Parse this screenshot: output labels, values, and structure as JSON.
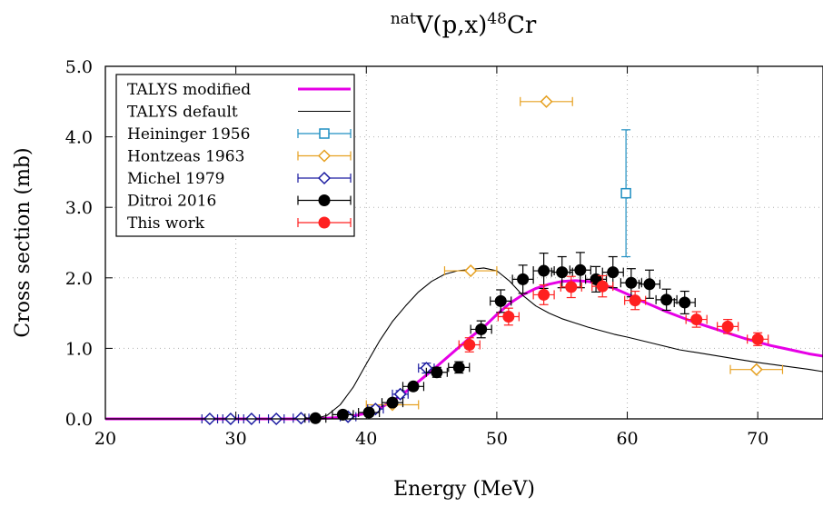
{
  "chart_data": {
    "type": "scatter",
    "title": {
      "base": "V(p,x)",
      "pre_sup": "nat",
      "post_sup": "48",
      "tail": "Cr"
    },
    "xlabel": "Energy (MeV)",
    "ylabel": "Cross section (mb)",
    "xlim": [
      20,
      75
    ],
    "ylim": [
      0,
      5
    ],
    "xticks": [
      "20",
      "30",
      "40",
      "50",
      "60",
      "70"
    ],
    "xtick_values": [
      20,
      30,
      40,
      50,
      60,
      70
    ],
    "yticks": [
      "0.0",
      "1.0",
      "2.0",
      "3.0",
      "4.0",
      "5.0"
    ],
    "ytick_values": [
      0,
      1,
      2,
      3,
      4,
      5
    ],
    "grid": true,
    "legend_position": "top-left",
    "series": [
      {
        "name": "TALYS modified",
        "kind": "line",
        "color": "#e600e6",
        "x": [
          20,
          30,
          35,
          37,
          38,
          39,
          40,
          41,
          42,
          43,
          44,
          45,
          46,
          47,
          48,
          49,
          50,
          51,
          52,
          53,
          54,
          55,
          56,
          57,
          58,
          59,
          60,
          61,
          62,
          63,
          64,
          65,
          66,
          67,
          68,
          69,
          70,
          71,
          72,
          73,
          74,
          75
        ],
        "y": [
          0,
          0,
          0,
          0.01,
          0.02,
          0.04,
          0.08,
          0.15,
          0.25,
          0.38,
          0.53,
          0.68,
          0.84,
          1.0,
          1.16,
          1.3,
          1.48,
          1.64,
          1.76,
          1.85,
          1.91,
          1.95,
          1.96,
          1.95,
          1.91,
          1.85,
          1.77,
          1.68,
          1.6,
          1.52,
          1.45,
          1.38,
          1.32,
          1.26,
          1.2,
          1.14,
          1.09,
          1.04,
          1.0,
          0.96,
          0.92,
          0.89
        ]
      },
      {
        "name": "TALYS default",
        "kind": "line",
        "color": "#000000",
        "x": [
          20,
          36,
          37,
          38,
          39,
          40,
          41,
          42,
          43,
          44,
          45,
          46,
          47,
          48,
          49,
          50,
          51,
          52,
          53,
          54,
          55,
          56,
          57,
          58,
          59,
          60,
          62,
          64,
          66,
          68,
          70,
          72,
          74,
          75
        ],
        "y": [
          0,
          0,
          0.05,
          0.2,
          0.45,
          0.78,
          1.1,
          1.38,
          1.6,
          1.8,
          1.95,
          2.05,
          2.1,
          2.12,
          2.14,
          2.1,
          1.95,
          1.75,
          1.6,
          1.5,
          1.42,
          1.36,
          1.3,
          1.25,
          1.2,
          1.16,
          1.07,
          0.98,
          0.92,
          0.86,
          0.8,
          0.75,
          0.7,
          0.67
        ]
      },
      {
        "name": "Heininger 1956",
        "kind": "points",
        "marker": "square",
        "color": "#1f8fc2",
        "x": [
          59.9
        ],
        "y": [
          3.2
        ],
        "xerr": [
          0.3
        ],
        "yerr": [
          0.9
        ]
      },
      {
        "name": "Hontzeas 1963",
        "kind": "points",
        "marker": "diamond",
        "color": "#e6a020",
        "x": [
          53.8,
          48.0,
          69.9,
          42.0
        ],
        "y": [
          4.5,
          2.1,
          0.7,
          0.2
        ],
        "xerr": [
          2.0,
          2.0,
          2.0,
          2.0
        ],
        "yerr": [
          0,
          0,
          0,
          0
        ]
      },
      {
        "name": "Michel 1979",
        "kind": "points",
        "marker": "diamond",
        "color": "#1a1aa0",
        "x": [
          28.0,
          29.6,
          31.2,
          33.1,
          35.0,
          38.6,
          40.7,
          42.6,
          44.6
        ],
        "y": [
          0,
          0,
          0,
          0,
          0.01,
          0.03,
          0.14,
          0.35,
          0.72
        ],
        "xerr": [
          0.6,
          0.6,
          0.6,
          0.6,
          0.6,
          0.6,
          0.6,
          0.6,
          0.6
        ],
        "yerr": [
          0,
          0,
          0,
          0,
          0,
          0,
          0.04,
          0.05,
          0.07
        ]
      },
      {
        "name": "Ditroi 2016",
        "kind": "points",
        "marker": "circle",
        "color": "#000000",
        "x": [
          36.1,
          38.2,
          40.2,
          42.0,
          43.6,
          45.4,
          47.1,
          48.8,
          50.3,
          52.0,
          53.6,
          55.0,
          56.4,
          57.6,
          58.9,
          60.3,
          61.7,
          63.0,
          64.4
        ],
        "y": [
          0.01,
          0.06,
          0.09,
          0.23,
          0.46,
          0.66,
          0.73,
          1.27,
          1.67,
          1.98,
          2.1,
          2.08,
          2.11,
          1.98,
          2.08,
          1.93,
          1.91,
          1.69,
          1.65
        ],
        "xerr": [
          0.8,
          0.8,
          0.8,
          0.8,
          0.8,
          0.8,
          0.8,
          0.8,
          0.8,
          0.8,
          0.8,
          0.8,
          0.8,
          0.8,
          0.8,
          0.8,
          0.8,
          0.8,
          0.8
        ],
        "yerr": [
          0.02,
          0.02,
          0.05,
          0.05,
          0.05,
          0.07,
          0.08,
          0.12,
          0.16,
          0.2,
          0.25,
          0.22,
          0.25,
          0.18,
          0.22,
          0.2,
          0.2,
          0.15,
          0.16
        ]
      },
      {
        "name": "This work",
        "kind": "points",
        "marker": "circle",
        "color": "#ff2020",
        "x": [
          47.9,
          50.9,
          53.6,
          55.7,
          58.1,
          60.6,
          65.3,
          67.7,
          70.0
        ],
        "y": [
          1.05,
          1.45,
          1.76,
          1.87,
          1.88,
          1.68,
          1.41,
          1.31,
          1.13
        ],
        "xerr": [
          0.8,
          0.8,
          0.8,
          0.8,
          0.8,
          0.8,
          0.8,
          0.8,
          0.8
        ],
        "yerr": [
          0.1,
          0.12,
          0.14,
          0.15,
          0.15,
          0.13,
          0.11,
          0.1,
          0.09
        ]
      }
    ]
  }
}
